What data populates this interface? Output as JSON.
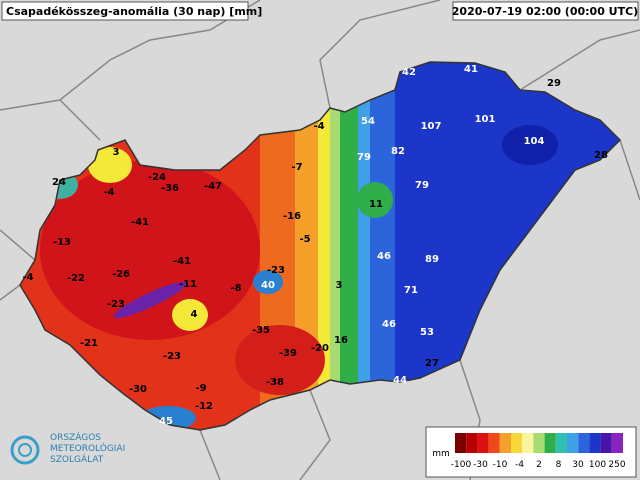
{
  "title": "Csapadékösszeg-anomália (30 nap) [mm]",
  "timestamp": "2020-07-19 02:00 (00:00 UTC)",
  "stations": [
    42,
    41,
    29,
    -4,
    54,
    107,
    101,
    104,
    28,
    3,
    79,
    82,
    -7,
    24,
    -24,
    -36,
    -47,
    -4,
    79,
    11,
    -16,
    -41,
    -13,
    -5,
    46,
    89,
    -41,
    -23,
    -26,
    -22,
    -4,
    -11,
    -8,
    40,
    3,
    71,
    -23,
    4,
    -35,
    46,
    53,
    16,
    -21,
    -39,
    -20,
    -23,
    27,
    -38,
    44,
    -30,
    -9,
    -12,
    45
  ],
  "legend": {
    "unit": "mm",
    "labels": [
      -100,
      -30,
      -10,
      -4,
      2,
      8,
      30,
      100,
      250
    ]
  },
  "logo": {
    "lines": [
      "ORSZÁGOS",
      "METEOROLÓGIAI",
      "SZOLGÁLAT"
    ]
  }
}
